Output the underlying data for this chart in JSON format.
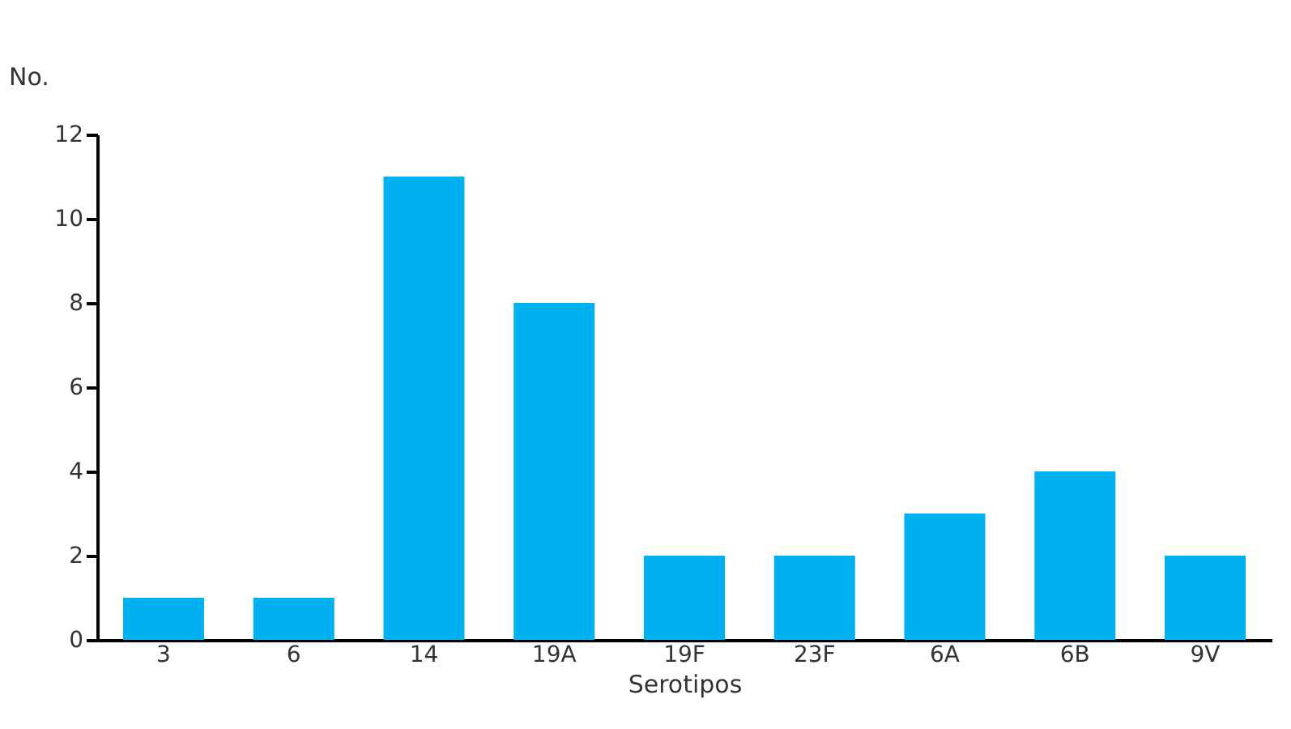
{
  "chart_data": {
    "type": "bar",
    "ylabel": "No.",
    "xlabel": "Serotipos",
    "categories": [
      "3",
      "6",
      "14",
      "19A",
      "19F",
      "23F",
      "6A",
      "6B",
      "9V"
    ],
    "values": [
      1,
      1,
      11,
      8,
      2,
      2,
      3,
      4,
      2
    ],
    "color": "#00b0f0",
    "ylim": [
      0,
      12
    ],
    "yticks": [
      0,
      2,
      4,
      6,
      8,
      10,
      12
    ],
    "grid": false
  }
}
